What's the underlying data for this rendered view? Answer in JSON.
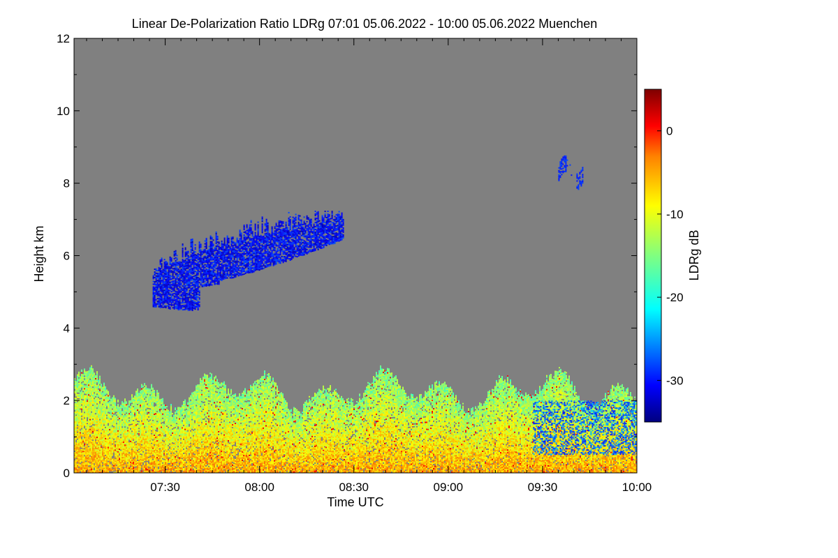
{
  "chart_data": {
    "type": "heatmap",
    "title": "Linear De-Polarization Ratio LDRg   07:01 05.06.2022 - 10:00 05.06.2022 Muenchen",
    "xlabel": "Time UTC",
    "ylabel": "Height km",
    "x_range": [
      "07:01",
      "10:00"
    ],
    "y_range": [
      0,
      12
    ],
    "x_ticks": [
      "07:30",
      "08:00",
      "08:30",
      "09:00",
      "09:30",
      "10:00"
    ],
    "y_ticks": [
      "0",
      "2",
      "4",
      "6",
      "8",
      "10",
      "12"
    ],
    "background_color": "#808080",
    "colorbar": {
      "label": "LDRg dB",
      "range": [
        -35,
        5
      ],
      "ticks": [
        "0",
        "-10",
        "-20",
        "-30"
      ],
      "colormap": "jet"
    },
    "features": [
      {
        "feature": "boundary layer",
        "height_km": [
          0,
          3.0
        ],
        "ldr_db": [
          -20,
          -5
        ]
      },
      {
        "feature": "ice cloud",
        "time": [
          "07:26",
          "08:27"
        ],
        "height_km": [
          4.6,
          6.9
        ],
        "ldr_db": [
          -33,
          -27
        ]
      },
      {
        "feature": "ice cloud",
        "time": [
          "09:35",
          "09:43"
        ],
        "height_km": [
          7.9,
          8.7
        ],
        "ldr_db": [
          -30,
          -27
        ]
      },
      {
        "feature": "low ldr patch",
        "time": [
          "09:27",
          "10:00"
        ],
        "height_km": [
          0.5,
          2.0
        ],
        "ldr_db": [
          -30,
          -22
        ]
      }
    ]
  }
}
